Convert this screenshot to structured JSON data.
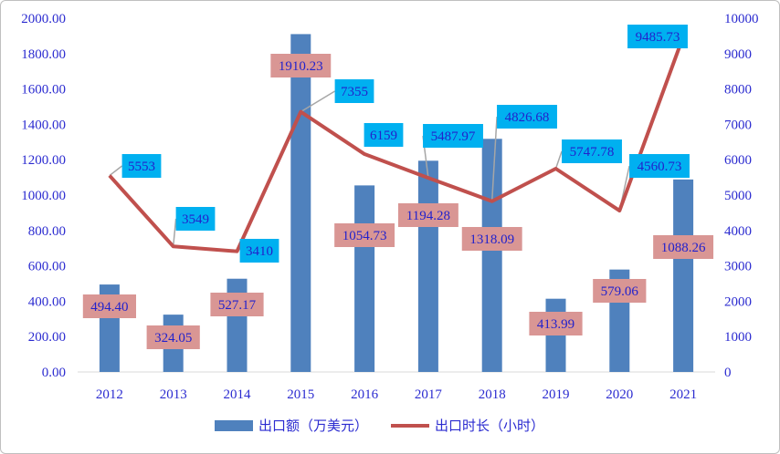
{
  "chart_data": {
    "type": "bar+line",
    "categories": [
      "2012",
      "2013",
      "2014",
      "2015",
      "2016",
      "2017",
      "2018",
      "2019",
      "2020",
      "2021"
    ],
    "series": [
      {
        "name": "出口额（万美元）",
        "type": "bar",
        "axis": "left",
        "color": "#4f81bd",
        "values": [
          494.4,
          324.05,
          527.17,
          1910.23,
          1054.73,
          1194.28,
          1318.09,
          413.99,
          579.06,
          1088.26
        ],
        "labels": [
          "494.40",
          "324.05",
          "527.17",
          "1910.23",
          "1054.73",
          "1194.28",
          "1318.09",
          "413.99",
          "579.06",
          "1088.26"
        ],
        "label_bg": "#d99694"
      },
      {
        "name": "出口时长（小时）",
        "type": "line",
        "axis": "right",
        "color": "#c0504d",
        "values": [
          5553,
          3549,
          3410,
          7355,
          6159,
          5487.97,
          4826.68,
          5747.78,
          4560.73,
          9485.73
        ],
        "labels": [
          "5553",
          "3549",
          "3410",
          "7355",
          "6159",
          "5487.97",
          "4826.68",
          "5747.78",
          "4560.73",
          "9485.73"
        ],
        "label_bg": "#00b0f0"
      }
    ],
    "y_left": {
      "min": 0,
      "max": 2000,
      "step": 200,
      "ticks": [
        "0.00",
        "200.00",
        "400.00",
        "600.00",
        "800.00",
        "1000.00",
        "1200.00",
        "1400.00",
        "1600.00",
        "1800.00",
        "2000.00"
      ]
    },
    "y_right": {
      "min": 0,
      "max": 10000,
      "step": 1000,
      "ticks": [
        "0",
        "1000",
        "2000",
        "3000",
        "4000",
        "5000",
        "6000",
        "7000",
        "8000",
        "9000",
        "10000"
      ]
    },
    "grid": false,
    "legend_position": "bottom"
  }
}
